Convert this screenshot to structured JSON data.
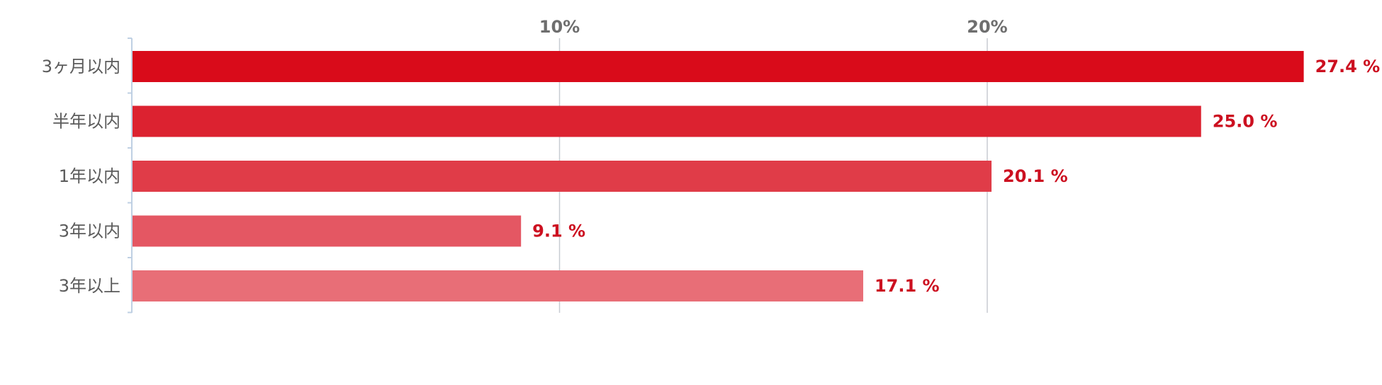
{
  "chart_data": {
    "type": "bar",
    "orientation": "horizontal",
    "title": "",
    "xlabel": "",
    "ylabel": "",
    "categories": [
      "3ヶ月以内",
      "半年以内",
      "1年以内",
      "3年以内",
      "3年以上"
    ],
    "values": [
      27.4,
      25.0,
      20.1,
      9.1,
      17.1
    ],
    "value_labels": [
      "27.4 %",
      "25.0 %",
      "20.1 %",
      "9.1 %",
      "17.1 %"
    ],
    "xticks": [
      10,
      20
    ],
    "xtick_labels": [
      "10%",
      "20%"
    ],
    "xlim": [
      0,
      27.4
    ],
    "axis_position": "top",
    "grid": true,
    "legend": "none",
    "bar_colors": [
      "#d90b1a",
      "#dc2230",
      "#e03c48",
      "#e45763",
      "#e86e77"
    ],
    "value_label_color": "#cc1020",
    "gridline_color": "#c8ccd2",
    "axis_color": "#bfd0e3"
  }
}
